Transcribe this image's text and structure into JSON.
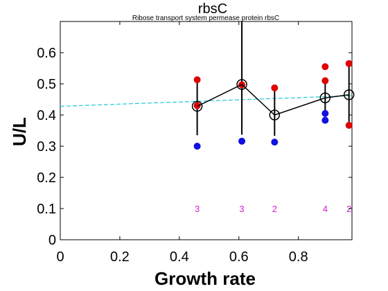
{
  "chart_data": {
    "type": "scatter",
    "title": "rbsC",
    "subtitle": "Ribose transport system permease protein rbsC",
    "xlabel": "Growth rate",
    "ylabel": "U/L",
    "xlim": [
      0,
      0.98
    ],
    "ylim": [
      0,
      0.7
    ],
    "xticks": [
      0,
      0.2,
      0.4,
      0.6,
      0.8
    ],
    "xtick_labels": [
      "0",
      "0.2",
      "0.4",
      "0.6",
      "0.8"
    ],
    "yticks": [
      0,
      0.1,
      0.2,
      0.3,
      0.4,
      0.5,
      0.6
    ],
    "ytick_labels": [
      "0",
      "0.1",
      "0.2",
      "0.3",
      "0.4",
      "0.5",
      "0.6"
    ],
    "grid": false,
    "colors": {
      "red": "#e00000",
      "blue": "#1010e0",
      "mean": "#000000",
      "fit": "#20c8d8",
      "count": "#d020d0"
    },
    "mean_series": {
      "x": [
        0.46,
        0.61,
        0.72,
        0.89,
        0.97
      ],
      "y": [
        0.428,
        0.498,
        0.4,
        0.455,
        0.465
      ]
    },
    "error_bars": [
      {
        "x": 0.46,
        "low": 0.335,
        "high": 0.513
      },
      {
        "x": 0.61,
        "low": 0.337,
        "high": 0.7
      },
      {
        "x": 0.72,
        "low": 0.333,
        "high": 0.485
      },
      {
        "x": 0.89,
        "low": 0.397,
        "high": 0.52
      },
      {
        "x": 0.97,
        "low": 0.378,
        "high": 0.56
      }
    ],
    "red_points": [
      {
        "x": 0.46,
        "y": 0.513
      },
      {
        "x": 0.46,
        "y": 0.43
      },
      {
        "x": 0.61,
        "y": 0.497
      },
      {
        "x": 0.72,
        "y": 0.487
      },
      {
        "x": 0.89,
        "y": 0.555
      },
      {
        "x": 0.89,
        "y": 0.51
      },
      {
        "x": 0.97,
        "y": 0.565
      },
      {
        "x": 0.97,
        "y": 0.367
      }
    ],
    "blue_points": [
      {
        "x": 0.46,
        "y": 0.3
      },
      {
        "x": 0.61,
        "y": 0.316
      },
      {
        "x": 0.72,
        "y": 0.313
      },
      {
        "x": 0.89,
        "y": 0.405
      },
      {
        "x": 0.89,
        "y": 0.383
      }
    ],
    "fit_line": {
      "x": [
        0,
        0.98
      ],
      "y": [
        0.428,
        0.462
      ]
    },
    "count_labels": [
      {
        "x": 0.46,
        "y": 0.1,
        "text": "3"
      },
      {
        "x": 0.61,
        "y": 0.1,
        "text": "3"
      },
      {
        "x": 0.72,
        "y": 0.1,
        "text": "2"
      },
      {
        "x": 0.89,
        "y": 0.1,
        "text": "4"
      },
      {
        "x": 0.97,
        "y": 0.1,
        "text": "2"
      }
    ]
  }
}
